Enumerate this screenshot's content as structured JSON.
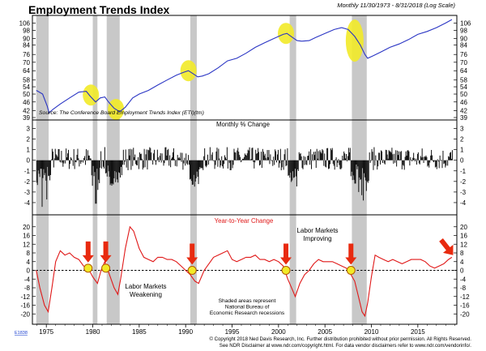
{
  "chart_data": [
    {
      "type": "line",
      "title": "Employment Trends Index",
      "subtitle": "Monthly 11/30/1973 - 8/31/2018 (Log Scale)",
      "source": "Source: The Conference Board Employment Trends Index (ETI)(tm)",
      "scale": "log",
      "ylim": [
        39,
        112
      ],
      "yticks": [
        39,
        42,
        46,
        50,
        54,
        58,
        64,
        70,
        76,
        84,
        90,
        98,
        106
      ],
      "series": [
        {
          "name": "Employment Trends Index",
          "color": "#2a35c4",
          "points": [
            [
              1973.92,
              52
            ],
            [
              1974.6,
              50
            ],
            [
              1975.1,
              44
            ],
            [
              1975.3,
              41
            ],
            [
              1975.7,
              42.5
            ],
            [
              1976.5,
              45
            ],
            [
              1977.5,
              48
            ],
            [
              1978.5,
              51
            ],
            [
              1979.3,
              51.5
            ],
            [
              1979.7,
              49
            ],
            [
              1980.3,
              46
            ],
            [
              1980.8,
              48
            ],
            [
              1981.3,
              48.5
            ],
            [
              1981.7,
              46
            ],
            [
              1982.3,
              43
            ],
            [
              1982.9,
              41.5
            ],
            [
              1983.5,
              43.5
            ],
            [
              1984.3,
              48
            ],
            [
              1985,
              50
            ],
            [
              1986,
              52
            ],
            [
              1987,
              55
            ],
            [
              1988,
              58
            ],
            [
              1989,
              61
            ],
            [
              1989.8,
              63
            ],
            [
              1990.3,
              64
            ],
            [
              1990.8,
              62
            ],
            [
              1991.3,
              60
            ],
            [
              1991.8,
              60.5
            ],
            [
              1992.5,
              62
            ],
            [
              1993.5,
              66
            ],
            [
              1994.5,
              71
            ],
            [
              1995.5,
              73
            ],
            [
              1996.5,
              77
            ],
            [
              1997.5,
              82
            ],
            [
              1998.5,
              86
            ],
            [
              1999.5,
              90
            ],
            [
              2000.5,
              94
            ],
            [
              2000.9,
              95
            ],
            [
              2001.5,
              91
            ],
            [
              2002,
              88
            ],
            [
              2002.5,
              87.5
            ],
            [
              2003.3,
              88
            ],
            [
              2004,
              91
            ],
            [
              2005,
              95
            ],
            [
              2006,
              99
            ],
            [
              2006.8,
              101
            ],
            [
              2007.5,
              99
            ],
            [
              2008.2,
              92
            ],
            [
              2008.8,
              84
            ],
            [
              2009.3,
              76
            ],
            [
              2009.6,
              73
            ],
            [
              2010.2,
              75
            ],
            [
              2011,
              78
            ],
            [
              2012,
              82
            ],
            [
              2013,
              85
            ],
            [
              2014,
              89
            ],
            [
              2015,
              94
            ],
            [
              2016,
              97
            ],
            [
              2017,
              101
            ],
            [
              2018,
              106
            ],
            [
              2018.67,
              110
            ]
          ]
        }
      ],
      "recessions": [
        [
          1973.92,
          1975.25
        ],
        [
          1980.0,
          1980.5
        ],
        [
          1981.5,
          1982.9
        ],
        [
          1990.5,
          1991.2
        ],
        [
          2001.2,
          2001.9
        ],
        [
          2007.9,
          2009.5
        ]
      ],
      "highlights": [
        [
          1979.8,
          49.5
        ],
        [
          1982.5,
          42.5
        ],
        [
          1990.3,
          64
        ],
        [
          2000.8,
          95
        ],
        [
          2008.2,
          88
        ]
      ]
    },
    {
      "type": "bar",
      "title": "Monthly % Change",
      "ylim": [
        -5,
        3.5
      ],
      "yticks": [
        3,
        2,
        1,
        0,
        -1,
        -2,
        -3,
        -4
      ],
      "seed": 7,
      "anomalies": [
        [
          1974.5,
          -4.4
        ],
        [
          1975.0,
          -3.7
        ],
        [
          1980.3,
          -4.1
        ],
        [
          1980.5,
          -2.8
        ],
        [
          1982.0,
          -2.4
        ],
        [
          2008.6,
          -3.0
        ],
        [
          2008.9,
          -3.3
        ],
        [
          2009.1,
          -3.8
        ],
        [
          2009.4,
          -2.9
        ],
        [
          2008.2,
          -2.2
        ]
      ]
    },
    {
      "type": "line",
      "title": "Year-to-Year Change",
      "ylim": [
        -24,
        24
      ],
      "yticks": [
        20,
        16,
        12,
        8,
        4,
        0,
        -4,
        -8,
        -12,
        -16,
        -20
      ],
      "series": [
        {
          "name": "Year-to-Year Change",
          "color": "#e01818",
          "points": [
            [
              1973.92,
              0
            ],
            [
              1974.3,
              -8
            ],
            [
              1974.8,
              -16
            ],
            [
              1975.2,
              -19
            ],
            [
              1975.6,
              -8
            ],
            [
              1976,
              4
            ],
            [
              1976.5,
              9
            ],
            [
              1977,
              7
            ],
            [
              1977.5,
              8
            ],
            [
              1978,
              6
            ],
            [
              1978.5,
              5
            ],
            [
              1979,
              2
            ],
            [
              1979.5,
              1
            ],
            [
              1980,
              -3
            ],
            [
              1980.5,
              -6
            ],
            [
              1980.9,
              0
            ],
            [
              1981.3,
              4
            ],
            [
              1981.8,
              -2
            ],
            [
              1982.3,
              -8
            ],
            [
              1982.7,
              -11
            ],
            [
              1983,
              -4
            ],
            [
              1983.5,
              10
            ],
            [
              1984,
              20
            ],
            [
              1984.4,
              18
            ],
            [
              1985,
              10
            ],
            [
              1985.5,
              6
            ],
            [
              1986,
              5
            ],
            [
              1986.5,
              4
            ],
            [
              1987,
              6
            ],
            [
              1987.5,
              6
            ],
            [
              1988,
              5
            ],
            [
              1988.5,
              5
            ],
            [
              1989,
              4
            ],
            [
              1989.5,
              2
            ],
            [
              1990,
              0
            ],
            [
              1990.5,
              -2
            ],
            [
              1991,
              -5
            ],
            [
              1991.4,
              -6
            ],
            [
              1992,
              0
            ],
            [
              1992.5,
              3
            ],
            [
              1993,
              6
            ],
            [
              1993.5,
              7
            ],
            [
              1994,
              8
            ],
            [
              1994.5,
              9
            ],
            [
              1995,
              5
            ],
            [
              1995.5,
              4
            ],
            [
              1996,
              5
            ],
            [
              1996.5,
              6
            ],
            [
              1997,
              6
            ],
            [
              1997.5,
              7
            ],
            [
              1998,
              5
            ],
            [
              1998.5,
              5
            ],
            [
              1999,
              4
            ],
            [
              1999.5,
              5
            ],
            [
              2000,
              4
            ],
            [
              2000.5,
              2
            ],
            [
              2001,
              -4
            ],
            [
              2001.5,
              -9
            ],
            [
              2001.8,
              -12
            ],
            [
              2002.3,
              -6
            ],
            [
              2002.8,
              -2
            ],
            [
              2003.3,
              0
            ],
            [
              2003.8,
              3
            ],
            [
              2004.3,
              5
            ],
            [
              2004.8,
              4
            ],
            [
              2005.3,
              4
            ],
            [
              2005.8,
              4
            ],
            [
              2006.3,
              3
            ],
            [
              2006.8,
              2
            ],
            [
              2007.3,
              1
            ],
            [
              2007.8,
              -2
            ],
            [
              2008.2,
              -5
            ],
            [
              2008.6,
              -12
            ],
            [
              2009.0,
              -19
            ],
            [
              2009.3,
              -21
            ],
            [
              2009.6,
              -15
            ],
            [
              2010.0,
              -3
            ],
            [
              2010.4,
              7
            ],
            [
              2010.8,
              6
            ],
            [
              2011.3,
              5
            ],
            [
              2011.8,
              4
            ],
            [
              2012.3,
              5
            ],
            [
              2012.8,
              4
            ],
            [
              2013.3,
              3
            ],
            [
              2013.8,
              4
            ],
            [
              2014.3,
              5
            ],
            [
              2014.8,
              5
            ],
            [
              2015.3,
              5
            ],
            [
              2015.8,
              4
            ],
            [
              2016.3,
              2
            ],
            [
              2016.8,
              1
            ],
            [
              2017.3,
              2
            ],
            [
              2017.8,
              3
            ],
            [
              2018.3,
              5
            ],
            [
              2018.67,
              6
            ]
          ]
        }
      ],
      "reference_line": 0,
      "highlights": [
        [
          1979.5,
          1
        ],
        [
          1981.4,
          1
        ],
        [
          1990.7,
          0
        ],
        [
          2000.8,
          0
        ],
        [
          2007.8,
          0
        ]
      ],
      "down_arrows": [
        [
          1979.5,
          1
        ],
        [
          1981.4,
          1
        ],
        [
          1990.7,
          0
        ],
        [
          2000.8,
          0
        ],
        [
          2007.8,
          0
        ]
      ],
      "trend_arrow": [
        [
          2017.5,
          14
        ],
        [
          2018.8,
          7
        ]
      ],
      "annotations": [
        {
          "text": "Labor Markets Weakening",
          "lines": [
            "Labor Markets",
            "Weakening"
          ]
        },
        {
          "text": "Labor Markets Improving",
          "lines": [
            "Labor Markets",
            "Improving"
          ]
        },
        {
          "text": "Shaded areas represent National Bureau of Economic Research recessions",
          "lines": [
            "Shaded areas represent",
            "National Bureau of",
            "Economic Research recessions"
          ]
        }
      ]
    }
  ],
  "x_axis": {
    "range": [
      1973.5,
      2019.2
    ],
    "tick_labels": [
      "1975",
      "1980",
      "1985",
      "1990",
      "1995",
      "2000",
      "2005",
      "2010",
      "2015"
    ],
    "tick_values": [
      1975,
      1980,
      1985,
      1990,
      1995,
      2000,
      2005,
      2010,
      2015
    ]
  },
  "footer": {
    "code": "E1838",
    "line1": "© Copyright 2018 Ned Davis Research, Inc.  Further distribution prohibited without prior permission.  All Rights Reserved.",
    "line2": "See NDR Disclaimer at www.ndr.com/copyright.html.  For data vendor disclaimers refer to www.ndr.com/vendorinfo/."
  },
  "colors": {
    "recession": "#c8c8c8",
    "highlight": "#f2ea28",
    "etiLine": "#2a35c4",
    "yoyLine": "#e01818",
    "bar": "#111111",
    "arrow": "#e82a0f"
  }
}
